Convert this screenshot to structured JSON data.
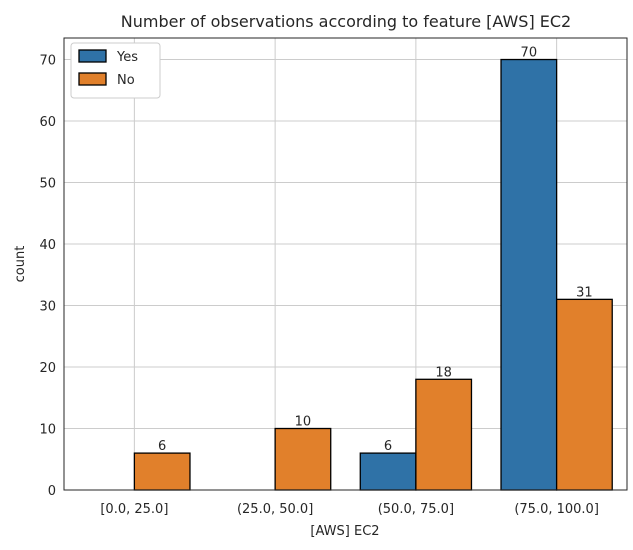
{
  "chart_data": {
    "type": "bar",
    "title": "Number of observations according to feature [AWS] EC2",
    "xlabel": "[AWS] EC2",
    "ylabel": "count",
    "categories": [
      "[0.0, 25.0]",
      "(25.0, 50.0]",
      "(50.0, 75.0]",
      "(75.0, 100.0]"
    ],
    "series": [
      {
        "name": "Yes",
        "color": "#2f72a7",
        "values": [
          null,
          null,
          6,
          70
        ]
      },
      {
        "name": "No",
        "color": "#e1802b",
        "values": [
          6,
          10,
          18,
          31
        ]
      }
    ],
    "ylim": [
      0,
      73.5
    ],
    "yticks": [
      0,
      10,
      20,
      30,
      40,
      50,
      60,
      70
    ],
    "grid": true,
    "legend_position": "top-left"
  }
}
